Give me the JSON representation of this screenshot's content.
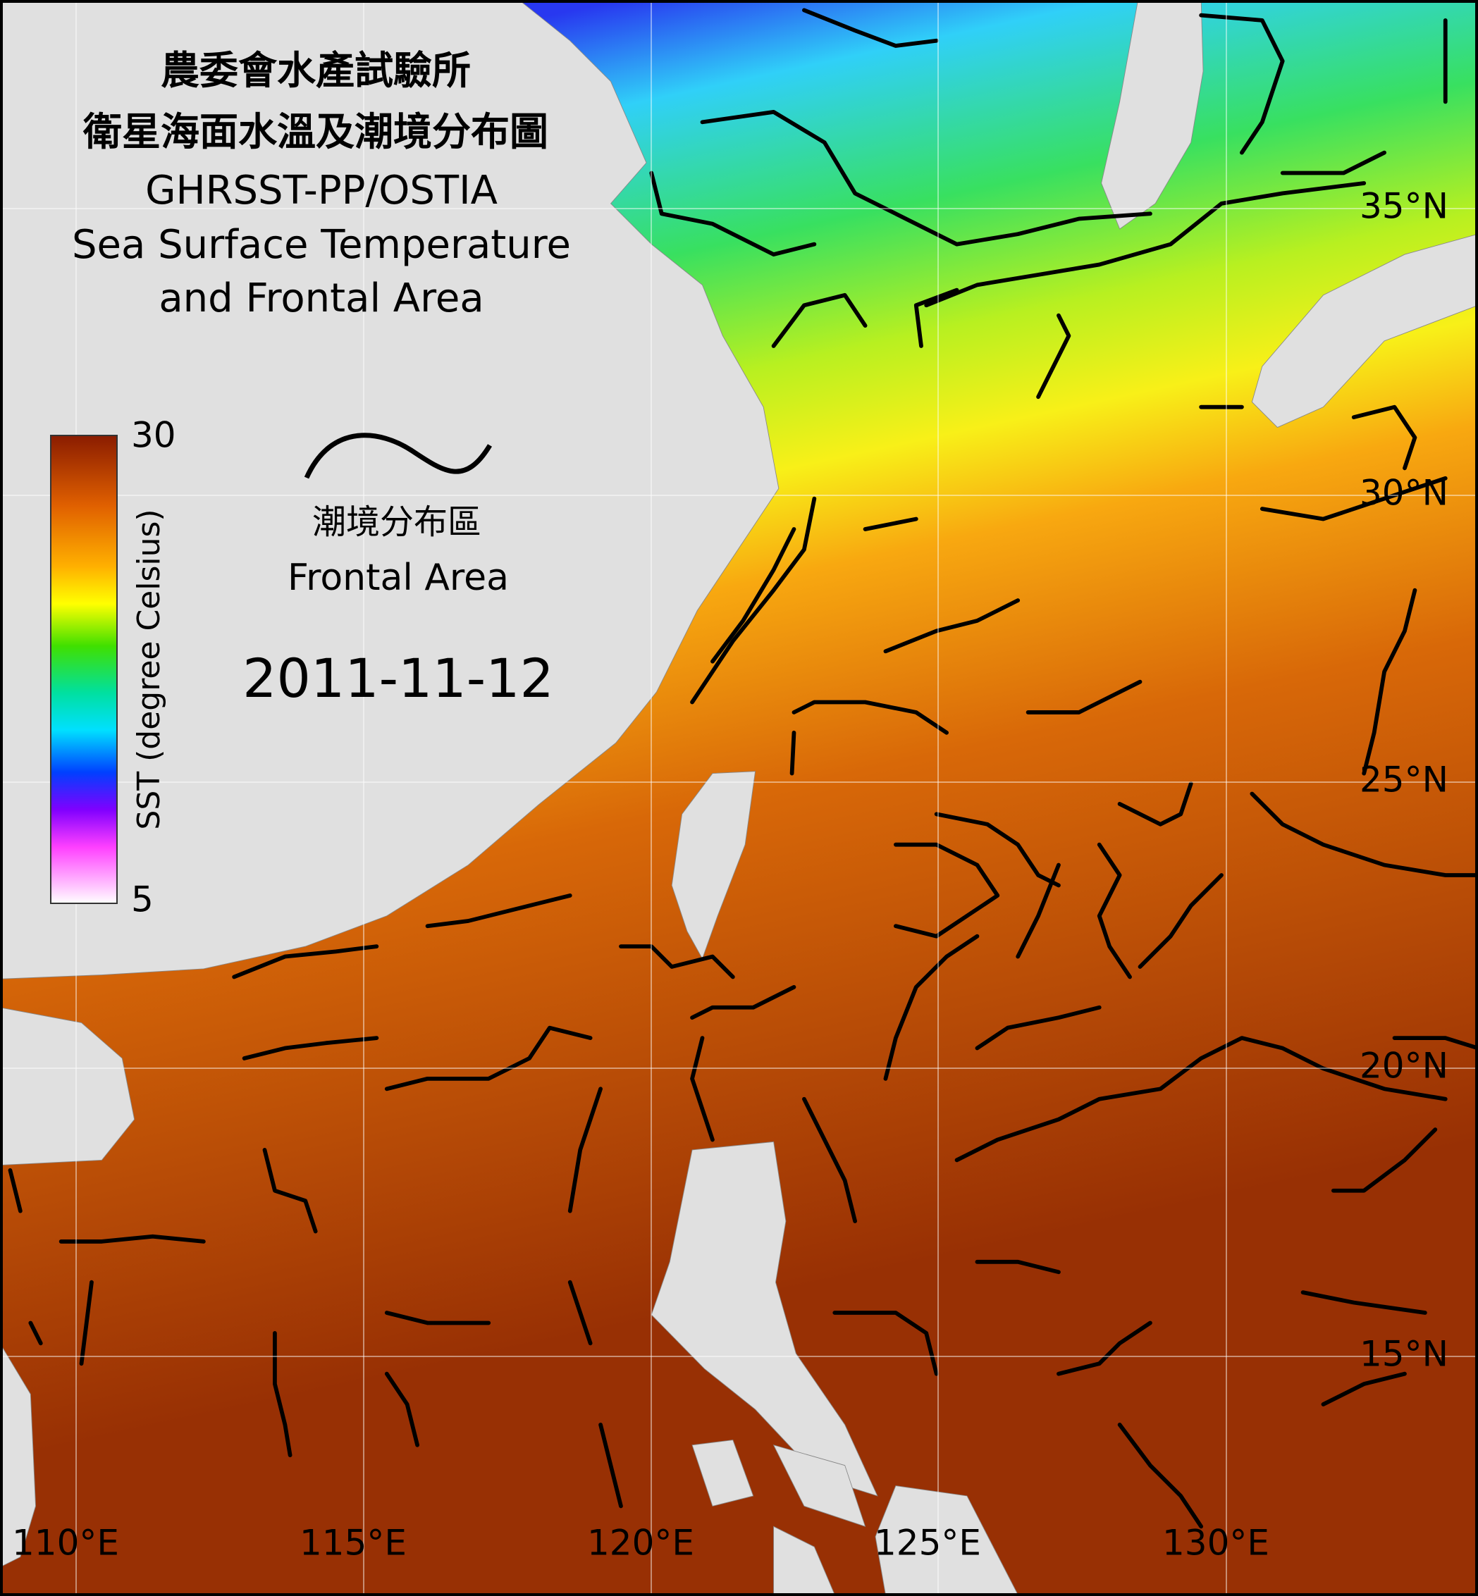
{
  "header": {
    "title_zh_1": "農委會水產試驗所",
    "title_zh_2": "衛星海面水溫及潮境分布圖",
    "title_en_1": "GHRSST-PP/OSTIA",
    "title_en_2": "Sea Surface Temperature",
    "title_en_3": "and Frontal Area"
  },
  "colorbar": {
    "label": "SST (degree Celsius)",
    "max": 30,
    "min": 5
  },
  "legend": {
    "label_zh": "潮境分布區",
    "label_en": "Frontal Area"
  },
  "date": "2011-11-12",
  "lat_labels": [
    "35°N",
    "30°N",
    "25°N",
    "20°N",
    "15°N"
  ],
  "lon_labels": [
    "110°E",
    "115°E",
    "120°E",
    "125°E",
    "130°E"
  ]
}
